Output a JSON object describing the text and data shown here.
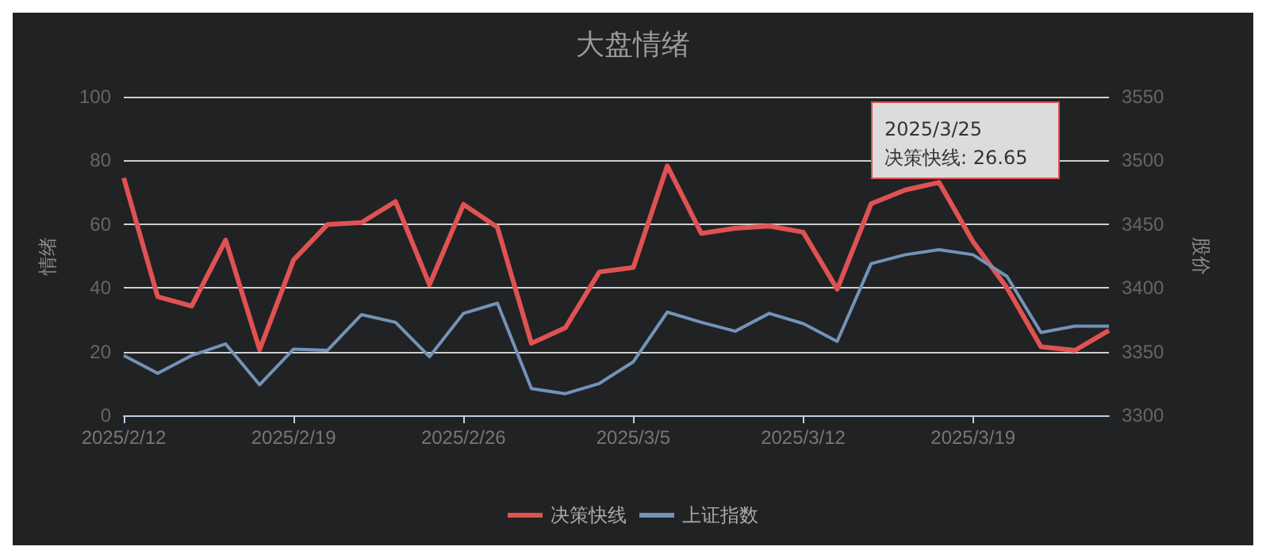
{
  "chart_data": {
    "type": "line",
    "title": "大盘情绪",
    "ylabel": "情绪",
    "y2label": "股价",
    "categories": [
      "2025/2/12",
      null,
      null,
      null,
      null,
      "2025/2/19",
      null,
      null,
      null,
      null,
      "2025/2/26",
      null,
      null,
      null,
      null,
      "2025/3/5",
      null,
      null,
      null,
      null,
      "2025/3/12",
      null,
      null,
      null,
      null,
      "2025/3/19",
      null,
      null,
      null,
      null
    ],
    "series": [
      {
        "name": "决策快线",
        "color": "#e05252",
        "values": [
          74.5,
          37.2,
          34.3,
          55,
          20.6,
          48.8,
          59.9,
          60.5,
          67.1,
          41,
          66.2,
          59,
          22.6,
          27.5,
          45,
          46.4,
          78.3,
          57.1,
          58.7,
          59.4,
          57.5,
          39.6,
          66.4,
          70.7,
          73.1,
          54.5,
          40,
          21.5,
          20.4,
          26.65
        ]
      },
      {
        "name": "上证指数",
        "color": "#7393b8",
        "axis": "y2",
        "values": [
          3347,
          3333,
          3347,
          3356,
          3324,
          3352,
          3351,
          3379,
          3373,
          3346,
          3380,
          3388,
          3321,
          3317,
          3325,
          3342,
          3381,
          3373,
          3366,
          3380,
          3372,
          3358,
          3419,
          3426,
          3430,
          3426,
          3409,
          3365,
          3370,
          3370
        ]
      }
    ],
    "ylim": [
      0,
      100
    ],
    "yticks": [
      0,
      20,
      40,
      60,
      80,
      100
    ],
    "y2lim": [
      3300,
      3550
    ],
    "y2ticks": [
      3300,
      3350,
      3400,
      3450,
      3500,
      3550
    ],
    "annotations": [
      "2025/3/25\n决策快线: 26.65"
    ],
    "grid": "y",
    "legend": "bottom",
    "marker": "none",
    "line_style": "solid"
  }
}
